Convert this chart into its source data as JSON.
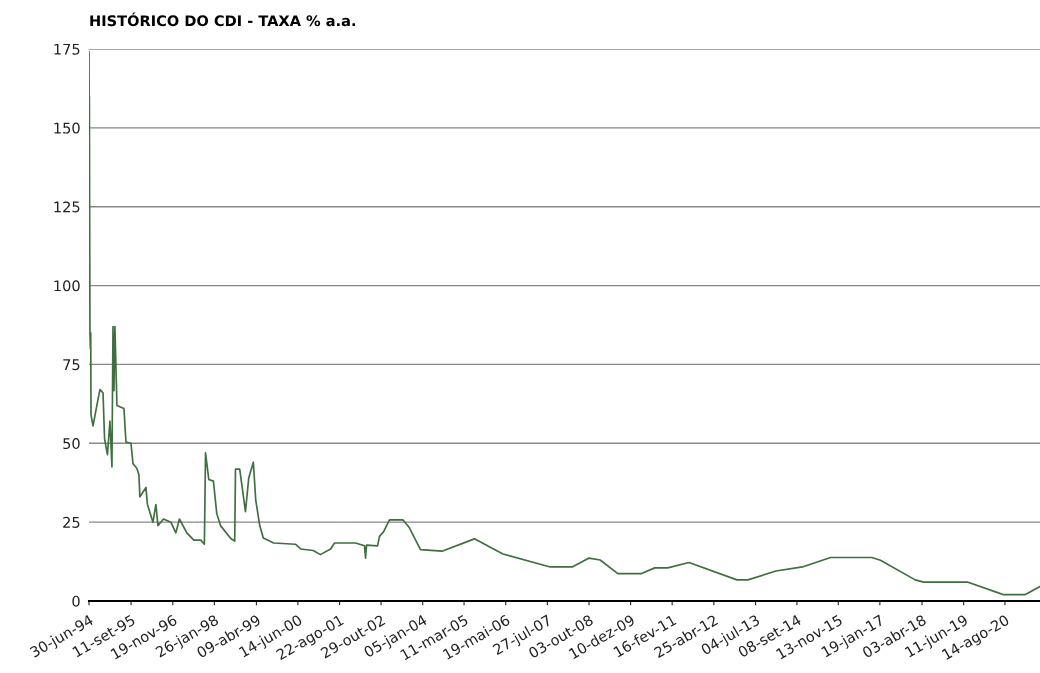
{
  "chart_data": {
    "type": "line",
    "title": "HISTÓRICO DO CDI - TAXA % a.a.",
    "x": [
      "1994-06-30",
      "1994-07-02",
      "1994-07-04",
      "1994-07-06",
      "1994-07-10",
      "1994-07-15",
      "1994-07-18",
      "1994-07-21",
      "1994-08-11",
      "1994-09-26",
      "1994-10-22",
      "1994-11-23",
      "1994-12-09",
      "1995-01-08",
      "1995-02-03",
      "1995-02-24",
      "1995-03-07",
      "1995-03-17",
      "1995-03-27",
      "1995-04-17",
      "1995-06-29",
      "1995-07-20",
      "1995-09-10",
      "1995-10-01",
      "1995-11-11",
      "1995-12-02",
      "1995-12-12",
      "1996-02-13",
      "1996-02-28",
      "1996-04-26",
      "1996-05-27",
      "1996-06-17",
      "1996-08-14",
      "1996-10-30",
      "1996-12-21",
      "1997-01-27",
      "1997-04-14",
      "1997-06-26",
      "1997-09-07",
      "1997-10-14",
      "1997-10-26",
      "1997-11-29",
      "1998-01-16",
      "1998-02-20",
      "1998-03-31",
      "1998-07-16",
      "1998-08-26",
      "1998-09-03",
      "1998-10-17",
      "1998-12-16",
      "1999-01-19",
      "1999-03-08",
      "1999-04-02",
      "1999-05-13",
      "1999-06-20",
      "1999-10-06",
      "2000-05-19",
      "2000-07-13",
      "2000-11-21",
      "2001-02-03",
      "2001-05-21",
      "2001-07-01",
      "2002-02-05",
      "2002-05-09",
      "2002-05-20",
      "2002-05-30",
      "2002-09-22",
      "2002-10-12",
      "2002-11-23",
      "2003-01-24",
      "2003-06-14",
      "2003-08-20",
      "2003-12-13",
      "2004-07-24",
      "2005-06-27",
      "2006-04-20",
      "2007-08-26",
      "2008-04-11",
      "2008-10-04",
      "2009-01-27",
      "2009-07-30",
      "2010-04-04",
      "2010-08-18",
      "2011-01-01",
      "2011-08-10",
      "2012-12-22",
      "2013-04-15",
      "2014-02-01",
      "2014-11-04",
      "2015-08-24",
      "2016-10-27",
      "2017-01-25",
      "2018-01-22",
      "2018-04-20",
      "2019-07-19",
      "2020-06-14",
      "2020-07-31",
      "2021-03-11",
      "2021-08-14"
    ],
    "series": [
      {
        "color": "#3f6e3f",
        "values": [
          174,
          150,
          160,
          130,
          85,
          80,
          85,
          59,
          55.5,
          63,
          67,
          66,
          51.5,
          46.4,
          57,
          42.5,
          87,
          66.7,
          87,
          62,
          61,
          50.4,
          50,
          43.6,
          42,
          40,
          33,
          36,
          30.7,
          25,
          30.6,
          23.9,
          26,
          25,
          21.6,
          26,
          21.6,
          19.3,
          19.3,
          18,
          47,
          38.5,
          38,
          27.7,
          23.9,
          19.8,
          19,
          41.8,
          41.8,
          28.3,
          39,
          44,
          32,
          24,
          20,
          18.4,
          18,
          16.5,
          16,
          14.7,
          16.5,
          18.4,
          18.4,
          17.5,
          13.6,
          17.7,
          17.5,
          20.5,
          21.9,
          25.7,
          25.7,
          23.2,
          16.3,
          15.8,
          19.7,
          14.9,
          10.8,
          10.8,
          13.6,
          13,
          8.7,
          8.7,
          10.5,
          10.5,
          12.2,
          6.7,
          6.7,
          9.5,
          10.8,
          13.8,
          13.8,
          12.9,
          6.7,
          6,
          6,
          2.5,
          2,
          2,
          4.6
        ]
      }
    ],
    "xlim": [
      "1994-06-30",
      "2021-08-14"
    ],
    "xticks": [
      {
        "value": "1994-06-30",
        "label": "30-jun-94"
      },
      {
        "value": "1995-09-11",
        "label": "11-set-95"
      },
      {
        "value": "1996-11-19",
        "label": "19-nov-96"
      },
      {
        "value": "1998-01-26",
        "label": "26-jan-98"
      },
      {
        "value": "1999-04-09",
        "label": "09-abr-99"
      },
      {
        "value": "2000-06-14",
        "label": "14-jun-00"
      },
      {
        "value": "2001-08-22",
        "label": "22-ago-01"
      },
      {
        "value": "2002-10-29",
        "label": "29-out-02"
      },
      {
        "value": "2004-01-05",
        "label": "05-jan-04"
      },
      {
        "value": "2005-03-11",
        "label": "11-mar-05"
      },
      {
        "value": "2006-05-19",
        "label": "19-mai-06"
      },
      {
        "value": "2007-07-27",
        "label": "27-jul-07"
      },
      {
        "value": "2008-10-03",
        "label": "03-out-08"
      },
      {
        "value": "2009-12-10",
        "label": "10-dez-09"
      },
      {
        "value": "2011-02-16",
        "label": "16-fev-11"
      },
      {
        "value": "2012-04-25",
        "label": "25-abr-12"
      },
      {
        "value": "2013-07-04",
        "label": "04-jul-13"
      },
      {
        "value": "2014-09-08",
        "label": "08-set-14"
      },
      {
        "value": "2015-11-13",
        "label": "13-nov-15"
      },
      {
        "value": "2017-01-19",
        "label": "19-jan-17"
      },
      {
        "value": "2018-04-03",
        "label": "03-abr-18"
      },
      {
        "value": "2019-06-11",
        "label": "11-jun-19"
      },
      {
        "value": "2020-08-14",
        "label": "14-ago-20"
      }
    ],
    "ylim": [
      0,
      175
    ],
    "yticks": [
      0,
      25,
      50,
      75,
      100,
      125,
      150,
      175
    ],
    "grid": "y",
    "marker": "none",
    "line_style": "solid",
    "legend": false
  }
}
